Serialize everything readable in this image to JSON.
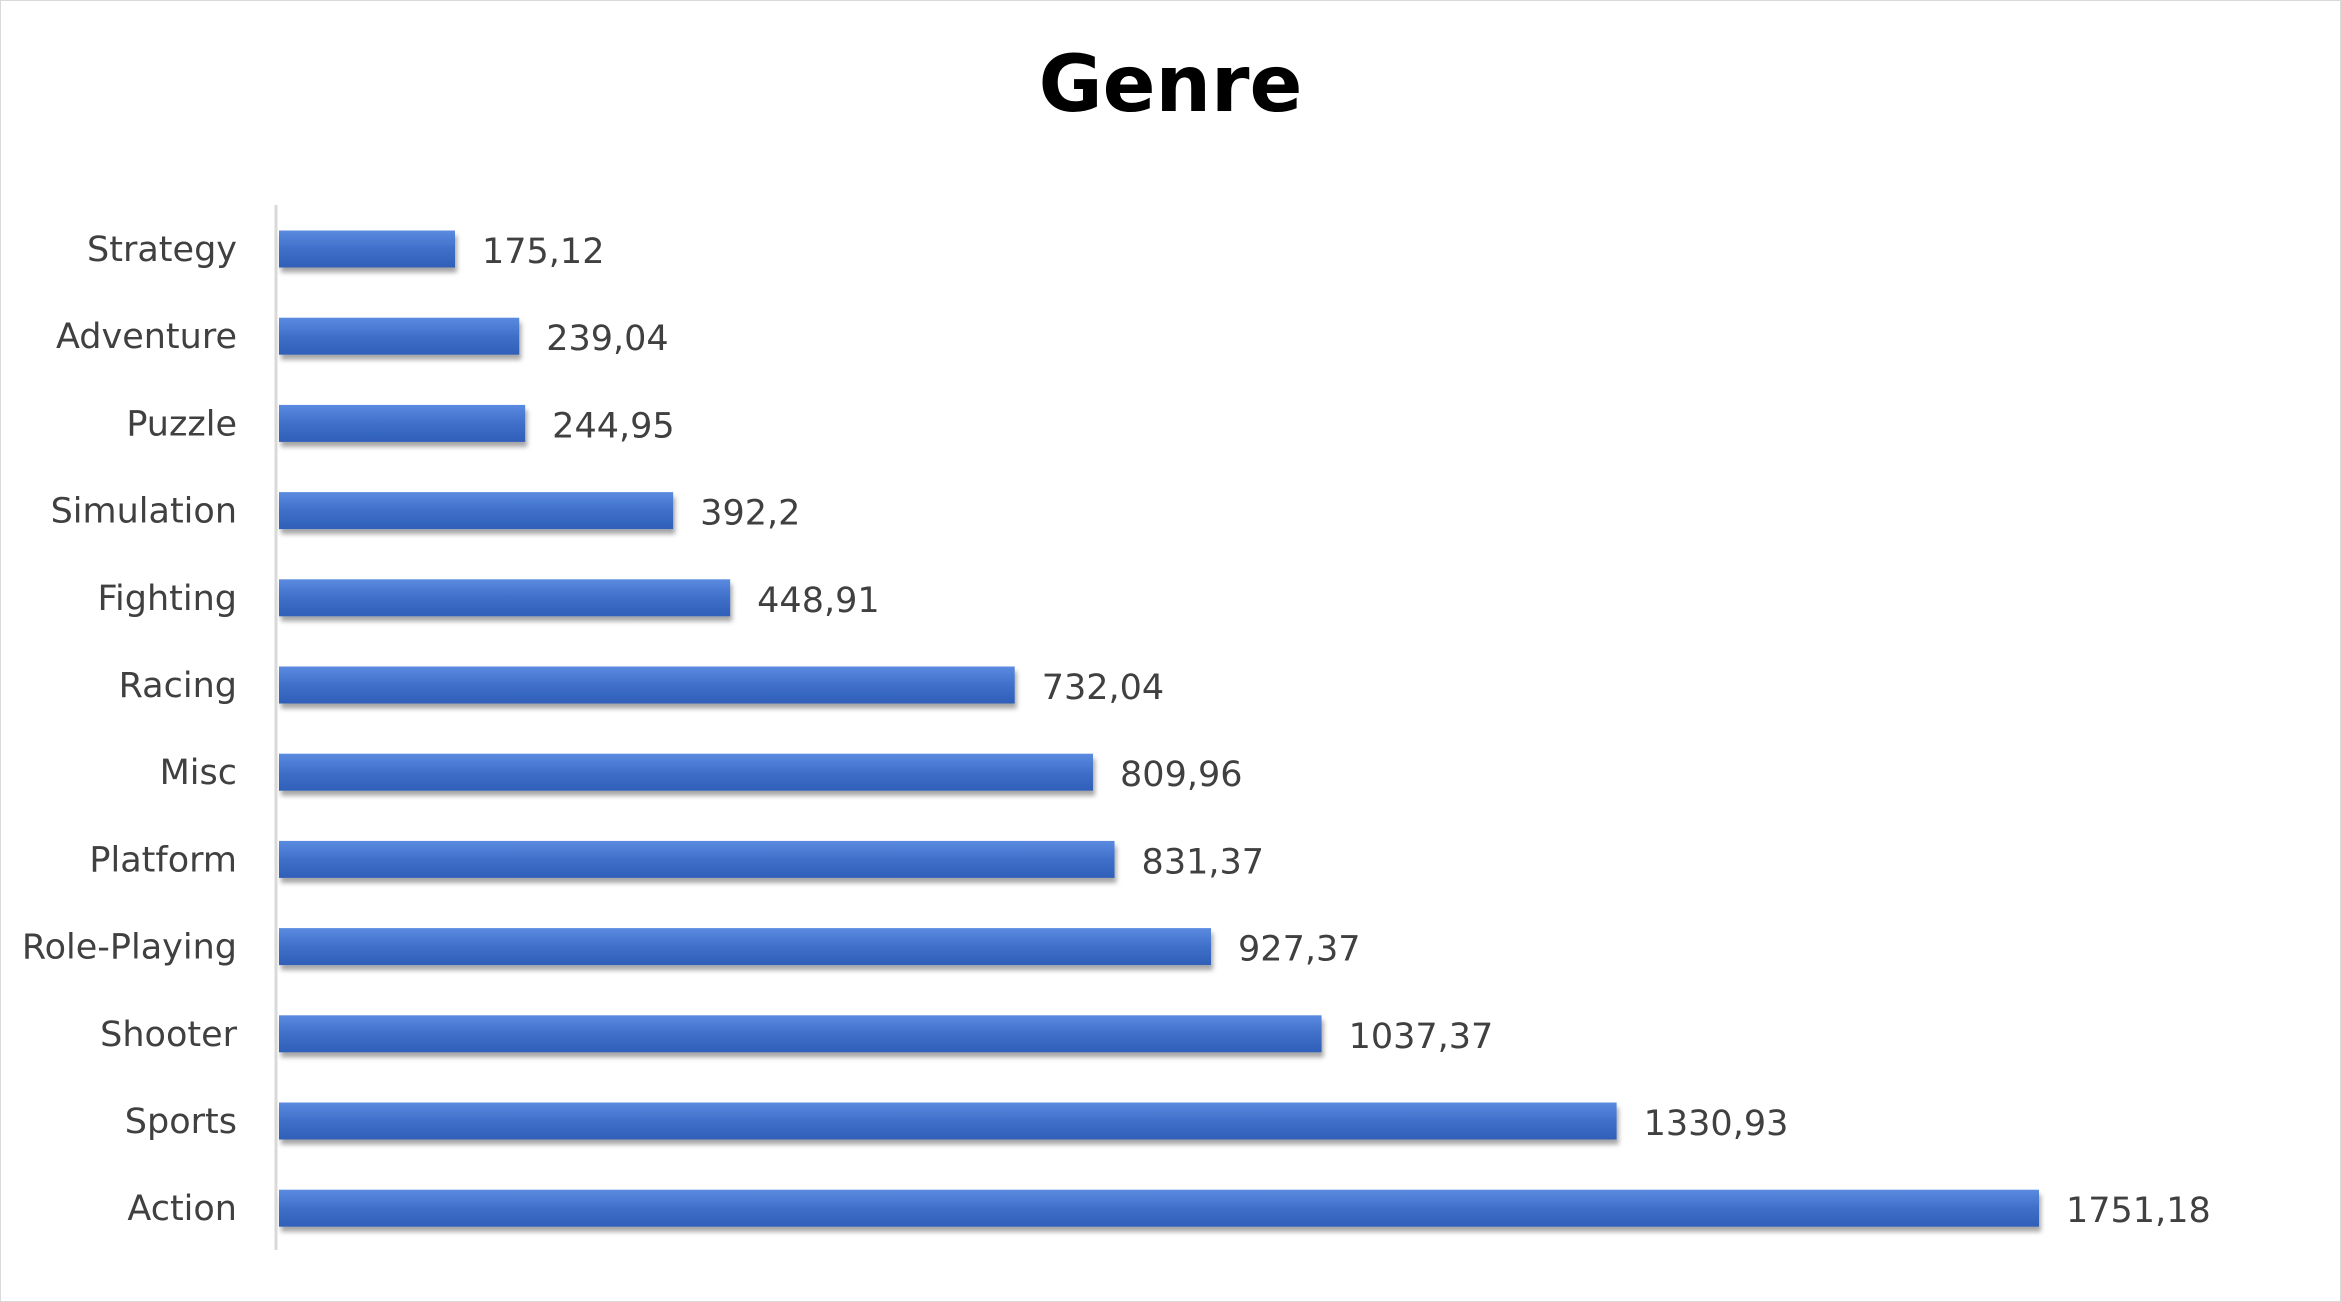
{
  "chart_data": {
    "type": "bar",
    "orientation": "horizontal",
    "title": "Genre",
    "xlabel": "",
    "ylabel": "",
    "categories": [
      "Strategy",
      "Adventure",
      "Puzzle",
      "Simulation",
      "Fighting",
      "Racing",
      "Misc",
      "Platform",
      "Role-Playing",
      "Shooter",
      "Sports",
      "Action"
    ],
    "values": [
      175.12,
      239.04,
      244.95,
      392.2,
      448.91,
      732.04,
      809.96,
      831.37,
      927.37,
      1037.37,
      1330.93,
      1751.18
    ],
    "value_labels": [
      "175,12",
      "239,04",
      "244,95",
      "392,2",
      "448,91",
      "732,04",
      "809,96",
      "831,37",
      "927,37",
      "1037,37",
      "1330,93",
      "1751,18"
    ],
    "xlim": [
      0,
      1751.18
    ],
    "grid": false,
    "legend": "none",
    "bar_color": "#4472c4"
  }
}
